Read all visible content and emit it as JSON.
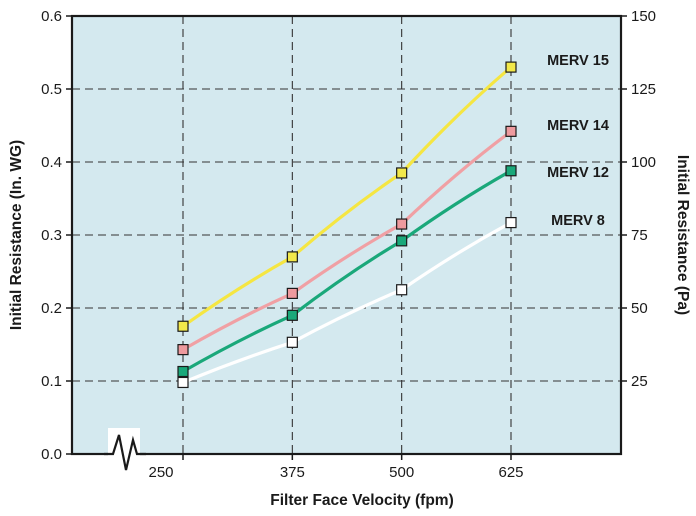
{
  "chart_data": {
    "type": "line",
    "xlabel": "Filter Face Velocity (fpm)",
    "ylabel": "Initial Resistance (In. WG)",
    "y2label": "Initial Resistance (Pa)",
    "x_ticks": [
      250,
      375,
      500,
      625
    ],
    "y_ticks": [
      "0.0",
      "0.1",
      "0.2",
      "0.3",
      "0.4",
      "0.5",
      "0.6"
    ],
    "y2_ticks": [
      "25",
      "50",
      "75",
      "100",
      "125",
      "150"
    ],
    "ylim": [
      0,
      0.6
    ],
    "y2lim": [
      0,
      150
    ],
    "axis_break": true,
    "grid": "dashed",
    "background": "#d4e9ef",
    "series": [
      {
        "name": "MERV 15",
        "color": "#f5e642",
        "marker_fill": "#f2e84a",
        "x": [
          250,
          375,
          500,
          625
        ],
        "y": [
          0.175,
          0.27,
          0.385,
          0.53
        ]
      },
      {
        "name": "MERV 14",
        "color": "#f0a0a4",
        "marker_fill": "#ee9a9e",
        "x": [
          250,
          375,
          500,
          625
        ],
        "y": [
          0.143,
          0.22,
          0.315,
          0.442
        ]
      },
      {
        "name": "MERV 12",
        "color": "#1aa87a",
        "marker_fill": "#1aa87a",
        "x": [
          250,
          375,
          500,
          625
        ],
        "y": [
          0.113,
          0.19,
          0.292,
          0.388
        ]
      },
      {
        "name": "MERV 8",
        "color": "#ffffff",
        "marker_fill": "#ffffff",
        "x": [
          250,
          375,
          500,
          625
        ],
        "y": [
          0.098,
          0.153,
          0.225,
          0.317
        ]
      }
    ]
  }
}
